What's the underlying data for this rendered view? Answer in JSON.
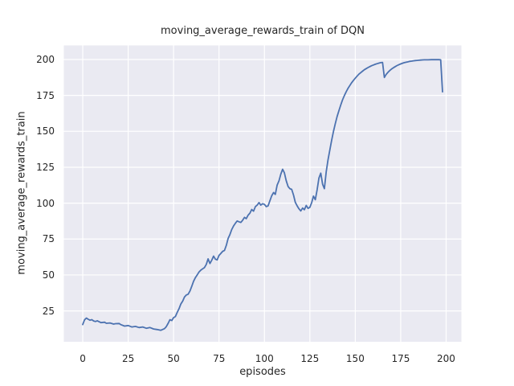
{
  "chart_data": {
    "type": "line",
    "title": "moving_average_rewards_train of DQN",
    "xlabel": "episodes",
    "ylabel": "moving_average_rewards_train",
    "xlim": [
      -10.4,
      208.4
    ],
    "ylim": [
      3.5,
      209.8
    ],
    "xticks": [
      0,
      25,
      50,
      75,
      100,
      125,
      150,
      175,
      200
    ],
    "yticks": [
      25,
      50,
      75,
      100,
      125,
      150,
      175,
      200
    ],
    "grid": true,
    "legend": "none",
    "style": {
      "panel_bg": "#eaeaf2",
      "grid_color": "#ffffff",
      "text_color": "#262626",
      "line_color": "#4c72b0"
    },
    "series": [
      {
        "name": "moving_average_rewards_train",
        "color": "#4c72b0",
        "points": [
          [
            0,
            15.5
          ],
          [
            1,
            18.8
          ],
          [
            2,
            20.0
          ],
          [
            3,
            19.2
          ],
          [
            4,
            18.5
          ],
          [
            5,
            18.9
          ],
          [
            6,
            18.0
          ],
          [
            7,
            17.6
          ],
          [
            8,
            18.1
          ],
          [
            10,
            16.8
          ],
          [
            12,
            17.1
          ],
          [
            13,
            16.4
          ],
          [
            15,
            16.6
          ],
          [
            17,
            15.8
          ],
          [
            18,
            16.1
          ],
          [
            20,
            16.2
          ],
          [
            21,
            15.4
          ],
          [
            23,
            14.4
          ],
          [
            25,
            14.8
          ],
          [
            27,
            13.8
          ],
          [
            29,
            14.2
          ],
          [
            31,
            13.4
          ],
          [
            33,
            13.8
          ],
          [
            35,
            12.9
          ],
          [
            37,
            13.4
          ],
          [
            39,
            12.4
          ],
          [
            41,
            12.0
          ],
          [
            43,
            11.5
          ],
          [
            45,
            12.6
          ],
          [
            46,
            14.1
          ],
          [
            47,
            16.4
          ],
          [
            48,
            18.9
          ],
          [
            49,
            18.3
          ],
          [
            50,
            20.3
          ],
          [
            51,
            21.1
          ],
          [
            52,
            24.0
          ],
          [
            53,
            26.5
          ],
          [
            54,
            29.8
          ],
          [
            55,
            31.8
          ],
          [
            56,
            34.6
          ],
          [
            57,
            36.1
          ],
          [
            58,
            36.6
          ],
          [
            59,
            38.8
          ],
          [
            60,
            42.2
          ],
          [
            61,
            45.6
          ],
          [
            62,
            48.2
          ],
          [
            63,
            50.1
          ],
          [
            64,
            52.1
          ],
          [
            65,
            53.4
          ],
          [
            66,
            54.3
          ],
          [
            67,
            55.2
          ],
          [
            68,
            57.4
          ],
          [
            69,
            61.2
          ],
          [
            70,
            58.0
          ],
          [
            71,
            60.3
          ],
          [
            72,
            63.1
          ],
          [
            73,
            61.0
          ],
          [
            74,
            60.5
          ],
          [
            75,
            63.6
          ],
          [
            76,
            65.0
          ],
          [
            77,
            66.4
          ],
          [
            78,
            67.1
          ],
          [
            79,
            70.6
          ],
          [
            80,
            75.4
          ],
          [
            81,
            78.2
          ],
          [
            82,
            81.6
          ],
          [
            83,
            84.1
          ],
          [
            84,
            86.0
          ],
          [
            85,
            87.6
          ],
          [
            86,
            87.0
          ],
          [
            87,
            86.6
          ],
          [
            88,
            88.1
          ],
          [
            89,
            90.1
          ],
          [
            90,
            89.2
          ],
          [
            91,
            91.6
          ],
          [
            92,
            93.1
          ],
          [
            93,
            95.6
          ],
          [
            94,
            94.4
          ],
          [
            95,
            97.6
          ],
          [
            96,
            98.6
          ],
          [
            97,
            100.4
          ],
          [
            98,
            98.6
          ],
          [
            99,
            99.6
          ],
          [
            100,
            99.1
          ],
          [
            101,
            97.6
          ],
          [
            102,
            98.1
          ],
          [
            103,
            101.6
          ],
          [
            104,
            105.1
          ],
          [
            105,
            107.4
          ],
          [
            106,
            106.1
          ],
          [
            107,
            112.6
          ],
          [
            108,
            115.6
          ],
          [
            109,
            120.1
          ],
          [
            110,
            123.6
          ],
          [
            111,
            121.1
          ],
          [
            112,
            115.6
          ],
          [
            113,
            111.6
          ],
          [
            114,
            110.1
          ],
          [
            115,
            109.6
          ],
          [
            116,
            105.6
          ],
          [
            117,
            100.6
          ],
          [
            118,
            98.1
          ],
          [
            119,
            96.1
          ],
          [
            120,
            94.6
          ],
          [
            121,
            96.6
          ],
          [
            122,
            95.4
          ],
          [
            123,
            98.4
          ],
          [
            124,
            96.4
          ],
          [
            125,
            97.1
          ],
          [
            126,
            100.4
          ],
          [
            127,
            104.9
          ],
          [
            128,
            102.4
          ],
          [
            129,
            109.4
          ],
          [
            130,
            117.4
          ],
          [
            131,
            120.9
          ],
          [
            132,
            113.1
          ],
          [
            133,
            110.1
          ],
          [
            134,
            121.9
          ],
          [
            135,
            130.1
          ],
          [
            136,
            137.1
          ],
          [
            137,
            143.9
          ],
          [
            138,
            149.9
          ],
          [
            139,
            155.4
          ],
          [
            140,
            160.4
          ],
          [
            141,
            164.4
          ],
          [
            142,
            168.4
          ],
          [
            143,
            171.9
          ],
          [
            144,
            174.9
          ],
          [
            145,
            177.6
          ],
          [
            146,
            179.9
          ],
          [
            147,
            181.9
          ],
          [
            148,
            183.9
          ],
          [
            149,
            185.5
          ],
          [
            150,
            187.0
          ],
          [
            151,
            188.4
          ],
          [
            152,
            189.8
          ],
          [
            153,
            190.9
          ],
          [
            154,
            191.9
          ],
          [
            155,
            192.9
          ],
          [
            156,
            193.7
          ],
          [
            157,
            194.4
          ],
          [
            158,
            195.1
          ],
          [
            159,
            195.7
          ],
          [
            160,
            196.2
          ],
          [
            161,
            196.7
          ],
          [
            162,
            197.1
          ],
          [
            163,
            197.5
          ],
          [
            164,
            197.8
          ],
          [
            165,
            198.0
          ],
          [
            166,
            187.5
          ],
          [
            167,
            189.6
          ],
          [
            168,
            191.1
          ],
          [
            169,
            192.4
          ],
          [
            170,
            193.4
          ],
          [
            171,
            194.3
          ],
          [
            172,
            195.1
          ],
          [
            173,
            195.8
          ],
          [
            174,
            196.4
          ],
          [
            175,
            196.9
          ],
          [
            176,
            197.4
          ],
          [
            177,
            197.8
          ],
          [
            178,
            198.1
          ],
          [
            179,
            198.4
          ],
          [
            180,
            198.7
          ],
          [
            181,
            198.9
          ],
          [
            182,
            199.1
          ],
          [
            183,
            199.3
          ],
          [
            184,
            199.4
          ],
          [
            185,
            199.5
          ],
          [
            186,
            199.6
          ],
          [
            187,
            199.7
          ],
          [
            188,
            199.8
          ],
          [
            190,
            199.8
          ],
          [
            192,
            199.9
          ],
          [
            194,
            199.9
          ],
          [
            196,
            199.9
          ],
          [
            197,
            199.8
          ],
          [
            198,
            177.5
          ]
        ]
      }
    ]
  }
}
